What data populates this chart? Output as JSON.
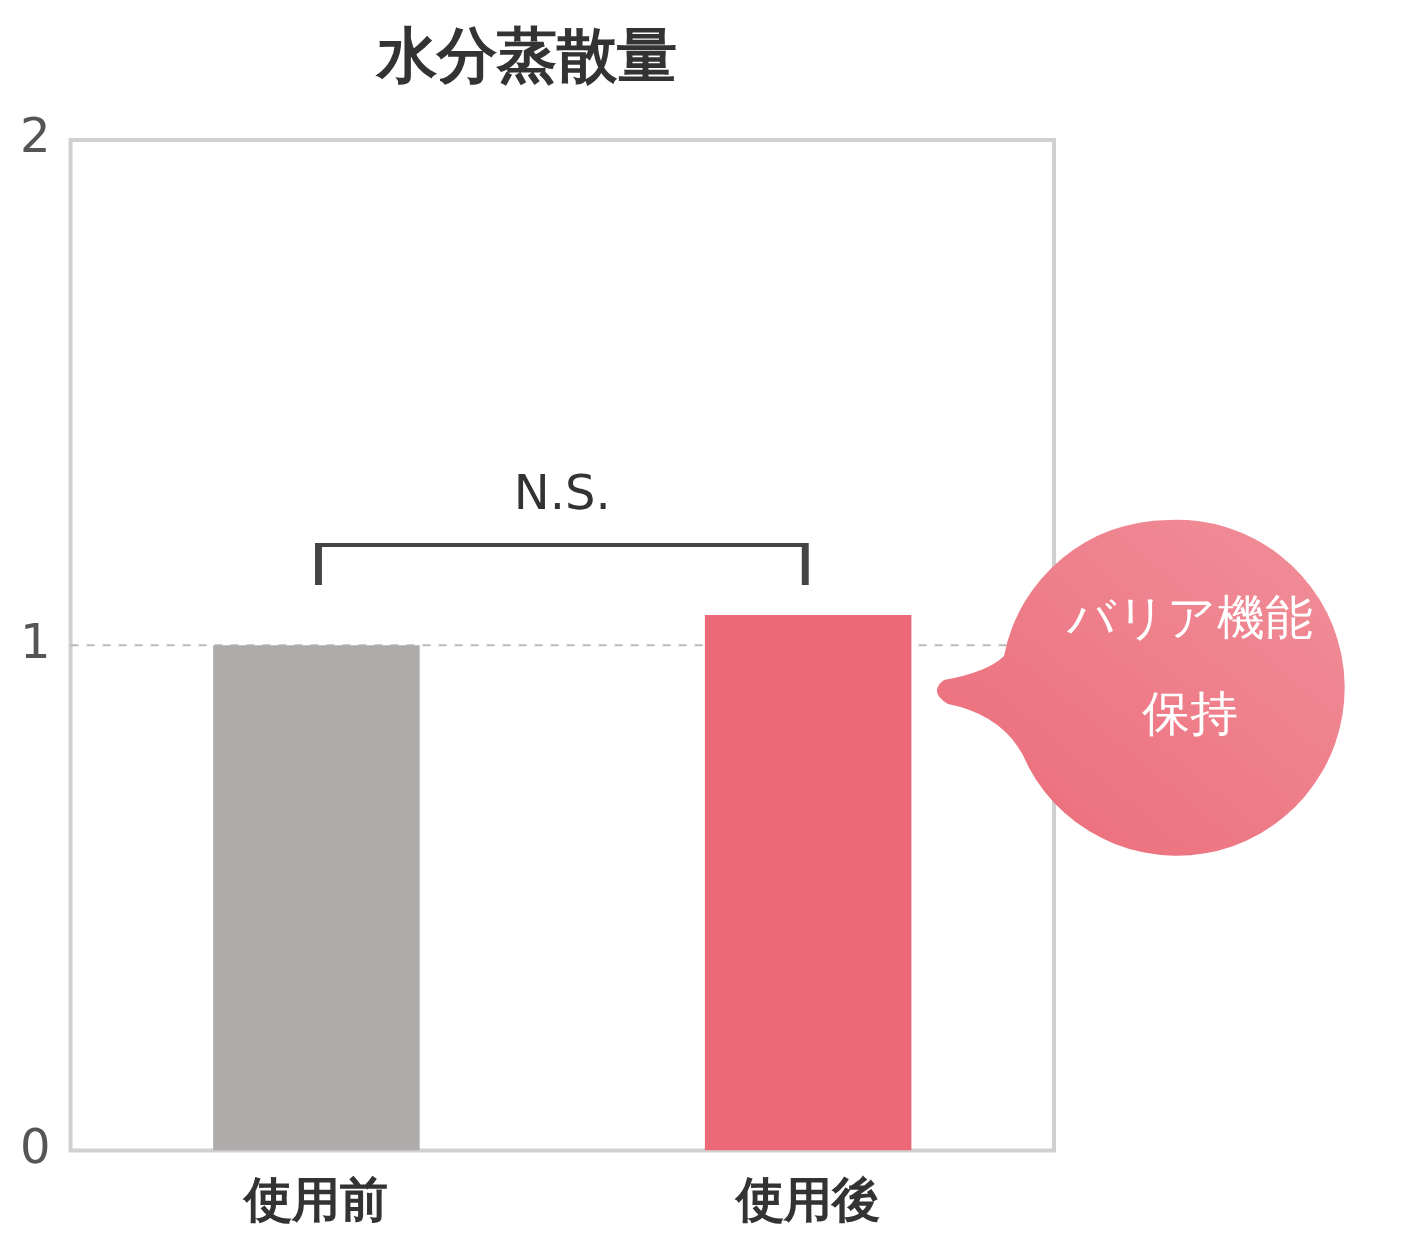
{
  "chart_data": {
    "type": "bar",
    "title": "水分蒸散量",
    "categories": [
      "使用前",
      "使用後"
    ],
    "values": [
      1,
      1.06
    ],
    "colors": [
      "#b0abab",
      "#ec6a78"
    ],
    "ylim": [
      0,
      2
    ],
    "yticks": [
      0,
      1,
      2
    ],
    "grid": false,
    "legend": false,
    "ref_lines": [
      {
        "axis": "y",
        "value": 1,
        "color": "#bbbbbb",
        "line_style": "dashed"
      }
    ],
    "annotations": [
      "N.S.",
      "バリア機能保持"
    ]
  }
}
